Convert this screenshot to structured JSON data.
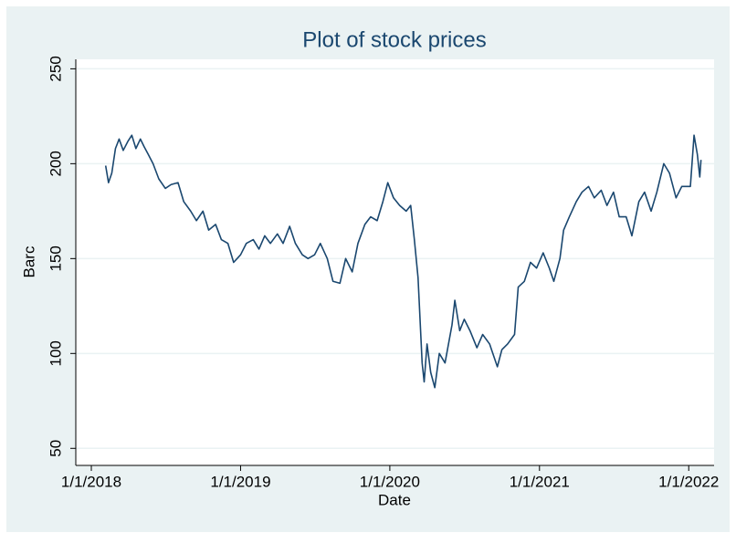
{
  "chart_data": {
    "type": "line",
    "title": "Plot of stock prices",
    "x_label": "Date",
    "y_label": "Barc",
    "color": "#1a476f",
    "grid": true,
    "xlim": [
      "2017-11-24",
      "2022-03-04"
    ],
    "xticks": [
      {
        "value": "2018-01-01",
        "label": "1/1/2018"
      },
      {
        "value": "2019-01-01",
        "label": "1/1/2019"
      },
      {
        "value": "2020-01-01",
        "label": "1/1/2020"
      },
      {
        "value": "2021-01-01",
        "label": "1/1/2021"
      },
      {
        "value": "2022-01-01",
        "label": "1/1/2022"
      }
    ],
    "ylim": [
      41,
      255
    ],
    "yticks": [
      50,
      100,
      150,
      200,
      250
    ],
    "x": [
      "2018-02-05",
      "2018-02-12",
      "2018-02-20",
      "2018-03-01",
      "2018-03-10",
      "2018-03-20",
      "2018-04-01",
      "2018-04-10",
      "2018-04-20",
      "2018-05-01",
      "2018-05-10",
      "2018-05-20",
      "2018-06-01",
      "2018-06-15",
      "2018-07-01",
      "2018-07-15",
      "2018-08-01",
      "2018-08-15",
      "2018-09-01",
      "2018-09-15",
      "2018-10-01",
      "2018-10-15",
      "2018-11-01",
      "2018-11-15",
      "2018-12-01",
      "2018-12-15",
      "2019-01-01",
      "2019-01-15",
      "2019-02-01",
      "2019-02-15",
      "2019-03-01",
      "2019-03-15",
      "2019-04-01",
      "2019-04-15",
      "2019-05-01",
      "2019-05-15",
      "2019-06-01",
      "2019-06-15",
      "2019-07-01",
      "2019-07-15",
      "2019-08-01",
      "2019-08-15",
      "2019-09-01",
      "2019-09-15",
      "2019-10-01",
      "2019-10-15",
      "2019-11-01",
      "2019-11-15",
      "2019-12-01",
      "2019-12-15",
      "2019-12-27",
      "2020-01-10",
      "2020-01-25",
      "2020-02-10",
      "2020-02-21",
      "2020-03-01",
      "2020-03-10",
      "2020-03-20",
      "2020-03-25",
      "2020-04-01",
      "2020-04-10",
      "2020-04-20",
      "2020-05-01",
      "2020-05-15",
      "2020-06-01",
      "2020-06-08",
      "2020-06-20",
      "2020-07-01",
      "2020-07-15",
      "2020-08-01",
      "2020-08-15",
      "2020-09-01",
      "2020-09-20",
      "2020-10-01",
      "2020-10-15",
      "2020-11-01",
      "2020-11-10",
      "2020-11-25",
      "2020-12-10",
      "2020-12-25",
      "2021-01-10",
      "2021-01-25",
      "2021-02-05",
      "2021-02-20",
      "2021-03-01",
      "2021-03-15",
      "2021-04-01",
      "2021-04-15",
      "2021-05-01",
      "2021-05-15",
      "2021-06-01",
      "2021-06-15",
      "2021-07-01",
      "2021-07-15",
      "2021-08-01",
      "2021-08-15",
      "2021-09-01",
      "2021-09-15",
      "2021-10-01",
      "2021-10-15",
      "2021-11-01",
      "2021-11-15",
      "2021-12-01",
      "2021-12-15",
      "2022-01-05",
      "2022-01-14",
      "2022-01-22",
      "2022-01-28",
      "2022-01-31"
    ],
    "values": [
      199,
      190,
      195,
      208,
      213,
      207,
      212,
      215,
      208,
      213,
      209,
      205,
      200,
      192,
      187,
      189,
      190,
      180,
      175,
      170,
      175,
      165,
      168,
      160,
      158,
      148,
      152,
      158,
      160,
      155,
      162,
      158,
      163,
      158,
      167,
      158,
      152,
      150,
      152,
      158,
      150,
      138,
      137,
      150,
      143,
      158,
      168,
      172,
      170,
      180,
      190,
      182,
      178,
      175,
      178,
      160,
      140,
      95,
      85,
      105,
      90,
      82,
      100,
      95,
      115,
      128,
      112,
      118,
      112,
      103,
      110,
      105,
      93,
      102,
      105,
      110,
      135,
      138,
      148,
      145,
      153,
      145,
      138,
      150,
      165,
      172,
      180,
      185,
      188,
      182,
      186,
      178,
      185,
      172,
      172,
      162,
      180,
      185,
      175,
      185,
      200,
      195,
      182,
      188,
      188,
      215,
      205,
      193,
      202
    ]
  }
}
